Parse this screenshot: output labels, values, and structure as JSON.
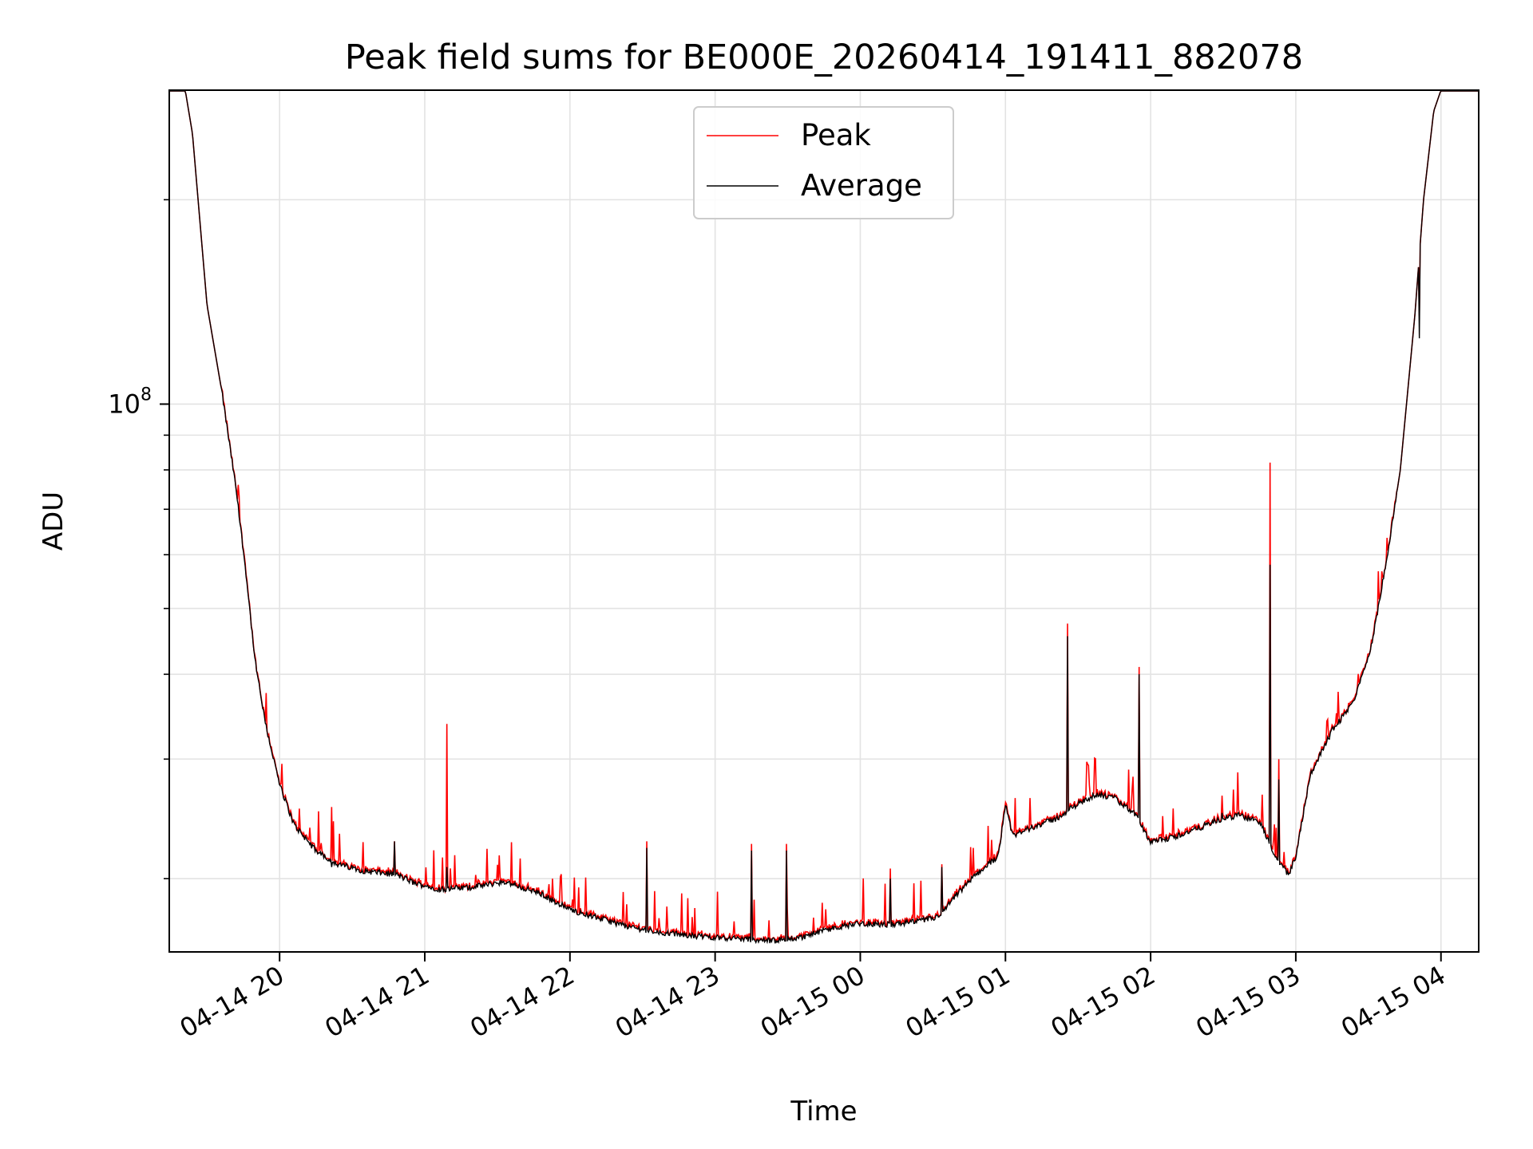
{
  "chart_data": {
    "type": "line",
    "title": "Peak field sums for BE000E_20260414_191411_882078",
    "xlabel": "Time",
    "ylabel": "ADU",
    "yscale": "log",
    "ylim": [
      15600000,
      290000000
    ],
    "xlim": [
      19.24,
      28.26
    ],
    "x_ticks": [
      {
        "value": 20,
        "label": "04-14 20"
      },
      {
        "value": 21,
        "label": "04-14 21"
      },
      {
        "value": 22,
        "label": "04-14 22"
      },
      {
        "value": 23,
        "label": "04-14 23"
      },
      {
        "value": 24,
        "label": "04-15 00"
      },
      {
        "value": 25,
        "label": "04-15 01"
      },
      {
        "value": 26,
        "label": "04-15 02"
      },
      {
        "value": 27,
        "label": "04-15 03"
      },
      {
        "value": 28,
        "label": "04-15 04"
      }
    ],
    "y_ticks": [
      {
        "value": 100000000,
        "base": "10",
        "exp": "8"
      }
    ],
    "y_minor_ticks": [
      20000000,
      30000000,
      40000000,
      50000000,
      60000000,
      70000000,
      80000000,
      90000000,
      200000000
    ],
    "grid": true,
    "legend": {
      "position": "top-center",
      "entries": [
        "Peak",
        "Average"
      ]
    },
    "series": [
      {
        "name": "Peak",
        "color": "#ff0000"
      },
      {
        "name": "Average",
        "color": "#000000"
      }
    ],
    "average_points": [
      [
        19.24,
        290000000
      ],
      [
        19.35,
        290000000
      ],
      [
        19.4,
        250000000
      ],
      [
        19.5,
        140000000
      ],
      [
        19.6,
        105000000
      ],
      [
        19.7,
        75000000
      ],
      [
        19.77,
        56000000
      ],
      [
        19.83,
        42000000
      ],
      [
        19.9,
        34000000
      ],
      [
        20.0,
        27500000
      ],
      [
        20.1,
        24000000
      ],
      [
        20.25,
        22000000
      ],
      [
        20.4,
        21000000
      ],
      [
        20.6,
        20500000
      ],
      [
        20.8,
        20300000
      ],
      [
        20.93,
        19700000
      ],
      [
        21.1,
        19300000
      ],
      [
        21.3,
        19400000
      ],
      [
        21.55,
        19800000
      ],
      [
        21.8,
        19000000
      ],
      [
        22.0,
        18000000
      ],
      [
        22.2,
        17500000
      ],
      [
        22.4,
        17000000
      ],
      [
        22.6,
        16700000
      ],
      [
        22.8,
        16500000
      ],
      [
        23.0,
        16400000
      ],
      [
        23.2,
        16300000
      ],
      [
        23.4,
        16200000
      ],
      [
        23.6,
        16400000
      ],
      [
        23.8,
        16900000
      ],
      [
        24.0,
        17200000
      ],
      [
        24.2,
        17100000
      ],
      [
        24.4,
        17300000
      ],
      [
        24.55,
        17600000
      ],
      [
        24.65,
        18800000
      ],
      [
        24.8,
        20300000
      ],
      [
        24.95,
        21600000
      ],
      [
        25.0,
        25800000
      ],
      [
        25.05,
        23100000
      ],
      [
        25.2,
        23900000
      ],
      [
        25.35,
        24500000
      ],
      [
        25.5,
        25800000
      ],
      [
        25.62,
        26600000
      ],
      [
        25.75,
        26300000
      ],
      [
        25.9,
        24800000
      ],
      [
        26.0,
        22600000
      ],
      [
        26.15,
        23000000
      ],
      [
        26.3,
        23600000
      ],
      [
        26.45,
        24300000
      ],
      [
        26.6,
        24800000
      ],
      [
        26.75,
        24300000
      ],
      [
        26.85,
        21800000
      ],
      [
        26.95,
        20200000
      ],
      [
        27.0,
        21600000
      ],
      [
        27.1,
        28500000
      ],
      [
        27.25,
        33000000
      ],
      [
        27.4,
        36500000
      ],
      [
        27.52,
        44000000
      ],
      [
        27.62,
        58000000
      ],
      [
        27.72,
        80000000
      ],
      [
        27.82,
        135000000
      ],
      [
        27.88,
        200000000
      ],
      [
        27.95,
        270000000
      ],
      [
        28.0,
        290000000
      ],
      [
        28.26,
        290000000
      ]
    ],
    "spikes": [
      {
        "x": 20.36,
        "peak": 25500000,
        "avg": 20800000
      },
      {
        "x": 20.79,
        "peak": 22700000,
        "avg": 22700000
      },
      {
        "x": 21.15,
        "peak": 33800000,
        "avg": 20800000
      },
      {
        "x": 22.53,
        "peak": 22700000,
        "avg": 22200000
      },
      {
        "x": 23.25,
        "peak": 22500000,
        "avg": 22000000
      },
      {
        "x": 23.49,
        "peak": 22500000,
        "avg": 22000000
      },
      {
        "x": 24.21,
        "peak": 20700000,
        "avg": 20000000
      },
      {
        "x": 24.56,
        "peak": 21000000,
        "avg": 20800000
      },
      {
        "x": 25.43,
        "peak": 47500000,
        "avg": 45500000
      },
      {
        "x": 25.92,
        "peak": 41000000,
        "avg": 40000000
      },
      {
        "x": 26.49,
        "peak": 26500000,
        "avg": 25000000
      },
      {
        "x": 26.82,
        "peak": 82000000,
        "avg": 58000000
      },
      {
        "x": 26.88,
        "peak": 30000000,
        "avg": 28000000
      },
      {
        "x": 27.85,
        "peak": 135000000,
        "avg": 125000000
      }
    ]
  }
}
